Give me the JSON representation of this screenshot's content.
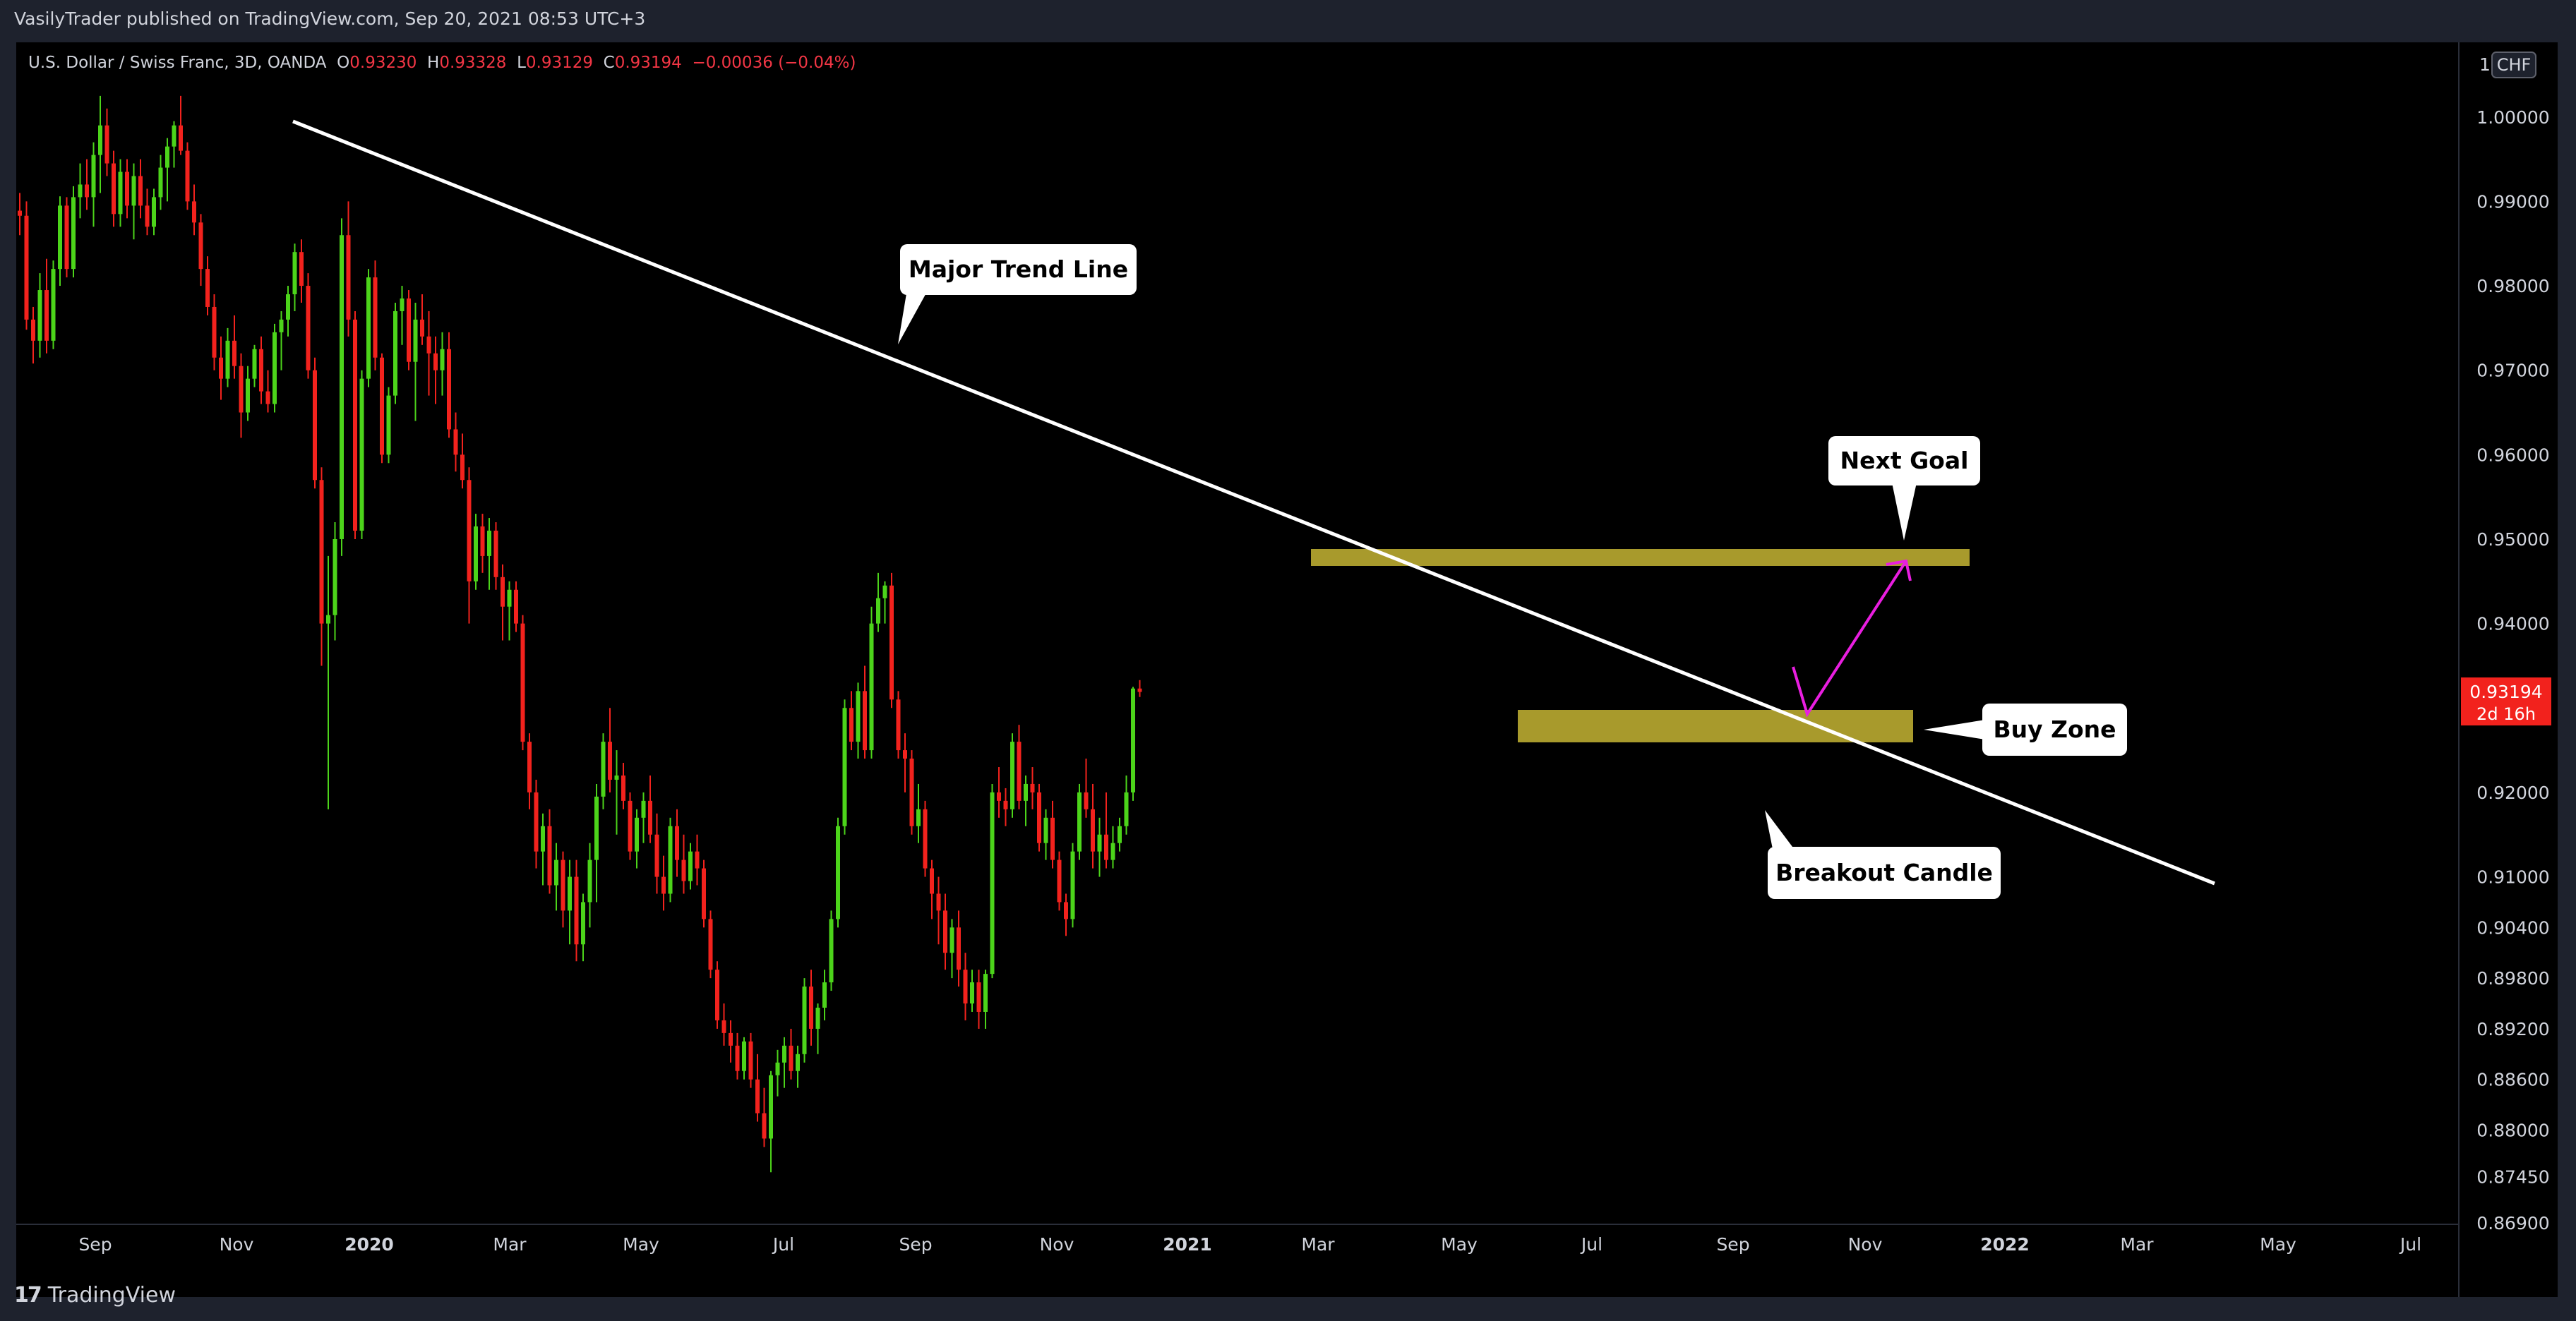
{
  "header": {
    "publisher_text": "VasilyTrader published on TradingView.com, Sep 20, 2021 08:53 UTC+3"
  },
  "legend": {
    "symbol": "U.S. Dollar / Swiss Franc, 3D, OANDA",
    "o_label": "O",
    "o_value": "0.93230",
    "h_label": "H",
    "h_value": "0.93328",
    "l_label": "L",
    "l_value": "0.93129",
    "c_label": "C",
    "c_value": "0.93194",
    "change": "−0.00036 (−0.04%)"
  },
  "footer": {
    "brand": "TradingView"
  },
  "colors": {
    "up": "#4cd41a",
    "down": "#f2221d",
    "zone": "#a89a2c",
    "trend": "#ffffff",
    "arrow": "#e91ee0",
    "price_label": "#f2221d"
  },
  "chart_data": {
    "type": "candlestick",
    "currency_label": "CHF",
    "axis_top_label": "1",
    "ylim": [
      0.86884,
      1.00884
    ],
    "price_ticks": [
      "1.00000",
      "0.99000",
      "0.98000",
      "0.97000",
      "0.96000",
      "0.95000",
      "0.94000",
      "0.92000",
      "0.91000",
      "0.90400",
      "0.89800",
      "0.89200",
      "0.88600",
      "0.88000",
      "0.87450",
      "0.86900"
    ],
    "x_tick_labels": [
      "Sep",
      "Nov",
      "2020",
      "Mar",
      "May",
      "Jul",
      "Sep",
      "Nov",
      "2021",
      "Mar",
      "May",
      "Jul",
      "Sep",
      "Nov",
      "2022",
      "Mar",
      "May",
      "Jul"
    ],
    "current_price": "0.93194",
    "countdown": "2d 16h",
    "candles": [
      [
        0.9889,
        0.991,
        0.986,
        0.9883
      ],
      [
        0.9883,
        0.99,
        0.9748,
        0.976
      ],
      [
        0.976,
        0.9775,
        0.9708,
        0.9735
      ],
      [
        0.9735,
        0.9815,
        0.9715,
        0.9795
      ],
      [
        0.9795,
        0.9832,
        0.972,
        0.9735
      ],
      [
        0.9735,
        0.983,
        0.9725,
        0.982
      ],
      [
        0.982,
        0.9906,
        0.98,
        0.9895
      ],
      [
        0.9895,
        0.9905,
        0.981,
        0.982
      ],
      [
        0.982,
        0.9918,
        0.981,
        0.9905
      ],
      [
        0.9905,
        0.9945,
        0.988,
        0.992
      ],
      [
        0.992,
        0.995,
        0.989,
        0.9905
      ],
      [
        0.9905,
        0.997,
        0.987,
        0.9955
      ],
      [
        0.9955,
        1.0025,
        0.991,
        0.999
      ],
      [
        0.999,
        1.001,
        0.993,
        0.9945
      ],
      [
        0.9945,
        0.996,
        0.987,
        0.9885
      ],
      [
        0.9885,
        0.995,
        0.987,
        0.9935
      ],
      [
        0.9935,
        0.995,
        0.988,
        0.9895
      ],
      [
        0.9895,
        0.9945,
        0.9855,
        0.993
      ],
      [
        0.993,
        0.995,
        0.988,
        0.9895
      ],
      [
        0.9895,
        0.9915,
        0.986,
        0.987
      ],
      [
        0.987,
        0.9915,
        0.986,
        0.9905
      ],
      [
        0.9905,
        0.9955,
        0.989,
        0.994
      ],
      [
        0.994,
        0.9975,
        0.99,
        0.9965
      ],
      [
        0.9965,
        0.9995,
        0.994,
        0.999
      ],
      [
        0.999,
        1.0025,
        0.9955,
        0.996
      ],
      [
        0.996,
        0.997,
        0.989,
        0.99
      ],
      [
        0.99,
        0.992,
        0.986,
        0.9875
      ],
      [
        0.9875,
        0.9885,
        0.98,
        0.982
      ],
      [
        0.982,
        0.9835,
        0.9765,
        0.9775
      ],
      [
        0.9775,
        0.979,
        0.97,
        0.9715
      ],
      [
        0.9715,
        0.974,
        0.9665,
        0.969
      ],
      [
        0.969,
        0.975,
        0.968,
        0.9735
      ],
      [
        0.9735,
        0.9765,
        0.969,
        0.9705
      ],
      [
        0.9705,
        0.972,
        0.962,
        0.965
      ],
      [
        0.965,
        0.9705,
        0.964,
        0.969
      ],
      [
        0.969,
        0.973,
        0.968,
        0.9725
      ],
      [
        0.9725,
        0.974,
        0.966,
        0.9675
      ],
      [
        0.9675,
        0.97,
        0.965,
        0.966
      ],
      [
        0.966,
        0.9755,
        0.965,
        0.9745
      ],
      [
        0.9745,
        0.977,
        0.97,
        0.976
      ],
      [
        0.976,
        0.98,
        0.974,
        0.979
      ],
      [
        0.979,
        0.985,
        0.977,
        0.984
      ],
      [
        0.984,
        0.9855,
        0.978,
        0.98
      ],
      [
        0.98,
        0.9815,
        0.969,
        0.97
      ],
      [
        0.97,
        0.9715,
        0.956,
        0.957
      ],
      [
        0.957,
        0.9585,
        0.935,
        0.94
      ],
      [
        0.94,
        0.948,
        0.918,
        0.941
      ],
      [
        0.941,
        0.952,
        0.938,
        0.95
      ],
      [
        0.95,
        0.988,
        0.948,
        0.986
      ],
      [
        0.986,
        0.99,
        0.974,
        0.976
      ],
      [
        0.976,
        0.977,
        0.95,
        0.951
      ],
      [
        0.951,
        0.97,
        0.95,
        0.969
      ],
      [
        0.969,
        0.982,
        0.968,
        0.981
      ],
      [
        0.981,
        0.983,
        0.97,
        0.9715
      ],
      [
        0.9715,
        0.972,
        0.959,
        0.96
      ],
      [
        0.96,
        0.968,
        0.959,
        0.967
      ],
      [
        0.967,
        0.978,
        0.966,
        0.977
      ],
      [
        0.977,
        0.98,
        0.973,
        0.9785
      ],
      [
        0.9785,
        0.9795,
        0.97,
        0.971
      ],
      [
        0.971,
        0.978,
        0.964,
        0.976
      ],
      [
        0.976,
        0.979,
        0.973,
        0.974
      ],
      [
        0.974,
        0.977,
        0.967,
        0.972
      ],
      [
        0.972,
        0.974,
        0.966,
        0.97
      ],
      [
        0.97,
        0.9745,
        0.967,
        0.9725
      ],
      [
        0.9725,
        0.9745,
        0.962,
        0.963
      ],
      [
        0.963,
        0.965,
        0.958,
        0.96
      ],
      [
        0.96,
        0.9625,
        0.956,
        0.957
      ],
      [
        0.957,
        0.9585,
        0.94,
        0.945
      ],
      [
        0.945,
        0.953,
        0.944,
        0.9515
      ],
      [
        0.9515,
        0.953,
        0.946,
        0.948
      ],
      [
        0.948,
        0.9525,
        0.944,
        0.951
      ],
      [
        0.951,
        0.952,
        0.944,
        0.9455
      ],
      [
        0.9455,
        0.947,
        0.938,
        0.942
      ],
      [
        0.942,
        0.945,
        0.938,
        0.944
      ],
      [
        0.944,
        0.945,
        0.939,
        0.94
      ],
      [
        0.94,
        0.941,
        0.925,
        0.926
      ],
      [
        0.926,
        0.927,
        0.918,
        0.92
      ],
      [
        0.92,
        0.9215,
        0.911,
        0.913
      ],
      [
        0.913,
        0.9175,
        0.909,
        0.916
      ],
      [
        0.916,
        0.918,
        0.908,
        0.909
      ],
      [
        0.909,
        0.914,
        0.906,
        0.912
      ],
      [
        0.912,
        0.913,
        0.904,
        0.906
      ],
      [
        0.906,
        0.912,
        0.902,
        0.91
      ],
      [
        0.91,
        0.912,
        0.9,
        0.902
      ],
      [
        0.902,
        0.908,
        0.9,
        0.907
      ],
      [
        0.907,
        0.914,
        0.904,
        0.912
      ],
      [
        0.912,
        0.921,
        0.907,
        0.9195
      ],
      [
        0.9195,
        0.927,
        0.918,
        0.926
      ],
      [
        0.926,
        0.93,
        0.92,
        0.9215
      ],
      [
        0.9215,
        0.925,
        0.915,
        0.922
      ],
      [
        0.922,
        0.9235,
        0.918,
        0.919
      ],
      [
        0.919,
        0.92,
        0.912,
        0.913
      ],
      [
        0.913,
        0.918,
        0.911,
        0.917
      ],
      [
        0.917,
        0.92,
        0.914,
        0.919
      ],
      [
        0.919,
        0.922,
        0.914,
        0.915
      ],
      [
        0.915,
        0.9175,
        0.908,
        0.91
      ],
      [
        0.91,
        0.9125,
        0.906,
        0.908
      ],
      [
        0.908,
        0.917,
        0.907,
        0.916
      ],
      [
        0.916,
        0.918,
        0.91,
        0.912
      ],
      [
        0.912,
        0.915,
        0.908,
        0.9095
      ],
      [
        0.9095,
        0.914,
        0.9085,
        0.913
      ],
      [
        0.913,
        0.915,
        0.909,
        0.911
      ],
      [
        0.911,
        0.912,
        0.904,
        0.905
      ],
      [
        0.905,
        0.906,
        0.898,
        0.899
      ],
      [
        0.899,
        0.9,
        0.892,
        0.893
      ],
      [
        0.893,
        0.895,
        0.89,
        0.8915
      ],
      [
        0.8915,
        0.893,
        0.888,
        0.89
      ],
      [
        0.89,
        0.8915,
        0.886,
        0.887
      ],
      [
        0.887,
        0.891,
        0.886,
        0.8905
      ],
      [
        0.8905,
        0.8915,
        0.885,
        0.886
      ],
      [
        0.886,
        0.889,
        0.881,
        0.882
      ],
      [
        0.882,
        0.885,
        0.878,
        0.879
      ],
      [
        0.879,
        0.887,
        0.875,
        0.8865
      ],
      [
        0.8865,
        0.8895,
        0.884,
        0.888
      ],
      [
        0.888,
        0.891,
        0.885,
        0.89
      ],
      [
        0.89,
        0.892,
        0.886,
        0.887
      ],
      [
        0.887,
        0.89,
        0.885,
        0.889
      ],
      [
        0.889,
        0.898,
        0.888,
        0.897
      ],
      [
        0.897,
        0.899,
        0.89,
        0.892
      ],
      [
        0.892,
        0.895,
        0.889,
        0.8945
      ],
      [
        0.8945,
        0.899,
        0.893,
        0.8975
      ],
      [
        0.8975,
        0.906,
        0.8965,
        0.905
      ],
      [
        0.905,
        0.917,
        0.904,
        0.916
      ],
      [
        0.916,
        0.931,
        0.915,
        0.93
      ],
      [
        0.93,
        0.932,
        0.925,
        0.926
      ],
      [
        0.926,
        0.933,
        0.924,
        0.932
      ],
      [
        0.932,
        0.935,
        0.924,
        0.925
      ],
      [
        0.925,
        0.942,
        0.924,
        0.94
      ],
      [
        0.94,
        0.946,
        0.939,
        0.943
      ],
      [
        0.943,
        0.945,
        0.94,
        0.9445
      ],
      [
        0.9445,
        0.946,
        0.93,
        0.931
      ],
      [
        0.931,
        0.932,
        0.924,
        0.925
      ],
      [
        0.925,
        0.927,
        0.92,
        0.924
      ],
      [
        0.924,
        0.925,
        0.915,
        0.916
      ],
      [
        0.916,
        0.921,
        0.914,
        0.918
      ],
      [
        0.918,
        0.919,
        0.91,
        0.911
      ],
      [
        0.911,
        0.912,
        0.905,
        0.908
      ],
      [
        0.908,
        0.91,
        0.902,
        0.906
      ],
      [
        0.906,
        0.908,
        0.899,
        0.901
      ],
      [
        0.901,
        0.905,
        0.898,
        0.904
      ],
      [
        0.904,
        0.906,
        0.897,
        0.899
      ],
      [
        0.899,
        0.901,
        0.893,
        0.895
      ],
      [
        0.895,
        0.899,
        0.894,
        0.8975
      ],
      [
        0.8975,
        0.899,
        0.892,
        0.894
      ],
      [
        0.894,
        0.899,
        0.892,
        0.8985
      ],
      [
        0.8985,
        0.921,
        0.898,
        0.92
      ],
      [
        0.92,
        0.923,
        0.917,
        0.919
      ],
      [
        0.919,
        0.9205,
        0.916,
        0.918
      ],
      [
        0.918,
        0.927,
        0.917,
        0.926
      ],
      [
        0.926,
        0.928,
        0.918,
        0.919
      ],
      [
        0.919,
        0.922,
        0.916,
        0.921
      ],
      [
        0.921,
        0.923,
        0.918,
        0.92
      ],
      [
        0.92,
        0.921,
        0.913,
        0.914
      ],
      [
        0.914,
        0.918,
        0.912,
        0.917
      ],
      [
        0.917,
        0.919,
        0.911,
        0.912
      ],
      [
        0.912,
        0.913,
        0.906,
        0.907
      ],
      [
        0.907,
        0.908,
        0.903,
        0.905
      ],
      [
        0.905,
        0.914,
        0.904,
        0.913
      ],
      [
        0.913,
        0.921,
        0.912,
        0.92
      ],
      [
        0.92,
        0.924,
        0.917,
        0.918
      ],
      [
        0.918,
        0.921,
        0.911,
        0.913
      ],
      [
        0.913,
        0.917,
        0.91,
        0.915
      ],
      [
        0.915,
        0.92,
        0.911,
        0.912
      ],
      [
        0.912,
        0.916,
        0.911,
        0.914
      ],
      [
        0.914,
        0.917,
        0.913,
        0.916
      ],
      [
        0.916,
        0.922,
        0.915,
        0.92
      ],
      [
        0.92,
        0.9325,
        0.919,
        0.9323
      ],
      [
        0.9323,
        0.9333,
        0.9313,
        0.9319
      ]
    ],
    "annotations": [
      "Major Trend Line",
      "Next Goal",
      "Buy Zone",
      "Breakout Candle"
    ]
  }
}
